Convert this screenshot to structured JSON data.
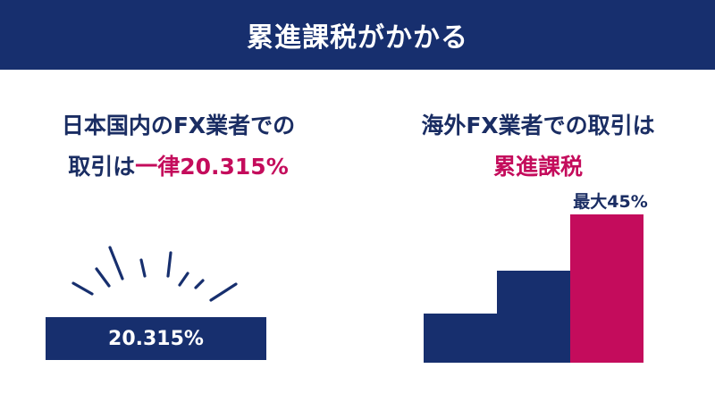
{
  "header": {
    "title": "累進課税がかかる"
  },
  "left": {
    "heading_line1": "日本国内のFX業者での",
    "heading_line2_prefix": "取引は",
    "heading_line2_accent": "一律20.315%",
    "bar_label": "20.315%"
  },
  "right": {
    "heading_line1": "海外FX業者での取引は",
    "heading_line2": "累進課税",
    "max_label": "最大45%",
    "bar_levels": [
      0.33,
      0.62,
      1.0
    ]
  },
  "colors": {
    "navy": "#172f6e",
    "accent": "#c40c5c",
    "text": "#1a2d63"
  },
  "icons": [
    "emphasis-burst-icon"
  ]
}
